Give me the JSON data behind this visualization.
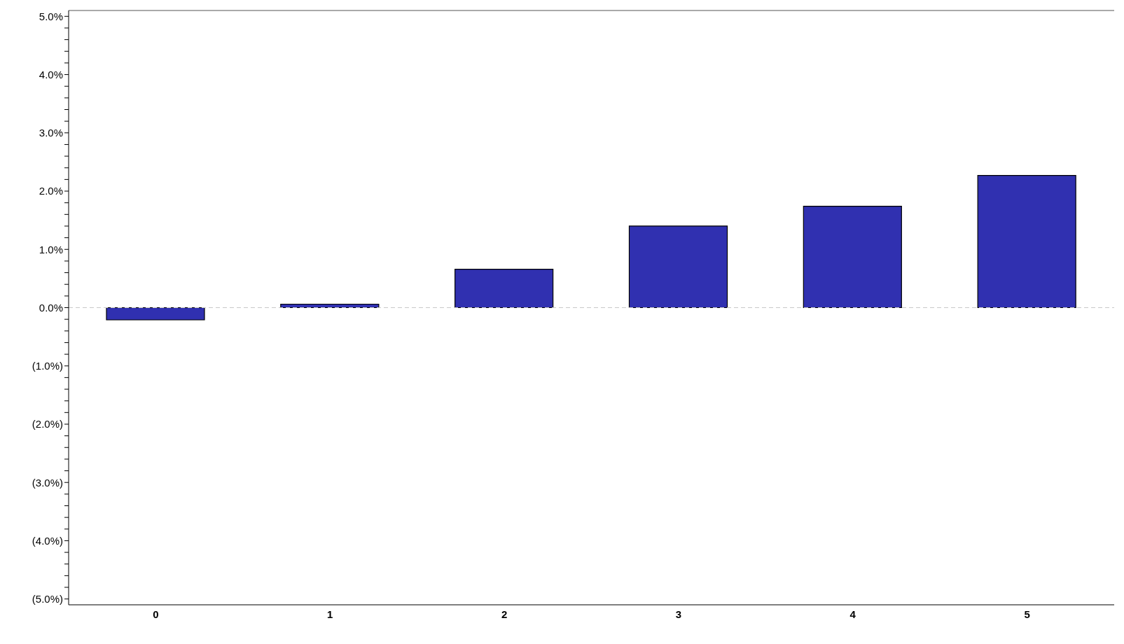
{
  "chart_data": {
    "type": "bar",
    "categories": [
      "0",
      "1",
      "2",
      "3",
      "4",
      "5"
    ],
    "values": [
      -0.21,
      0.06,
      0.66,
      1.4,
      1.74,
      2.27
    ],
    "color": "#3030b0",
    "ylim": [
      -5.1,
      5.1
    ],
    "yticks": [
      {
        "value": -5,
        "label": "(5.0%)"
      },
      {
        "value": -4.8,
        "label": null
      },
      {
        "value": -4.6,
        "label": null
      },
      {
        "value": -4.4,
        "label": null
      },
      {
        "value": -4.2,
        "label": null
      },
      {
        "value": -4,
        "label": "(4.0%)"
      },
      {
        "value": -3.8,
        "label": null
      },
      {
        "value": -3.6,
        "label": null
      },
      {
        "value": -3.4,
        "label": null
      },
      {
        "value": -3.2,
        "label": null
      },
      {
        "value": -3,
        "label": "(3.0%)"
      },
      {
        "value": -2.8,
        "label": null
      },
      {
        "value": -2.6,
        "label": null
      },
      {
        "value": -2.4,
        "label": null
      },
      {
        "value": -2.2,
        "label": null
      },
      {
        "value": -2,
        "label": "(2.0%)"
      },
      {
        "value": -1.8,
        "label": null
      },
      {
        "value": -1.6,
        "label": null
      },
      {
        "value": -1.4,
        "label": null
      },
      {
        "value": -1.2,
        "label": null
      },
      {
        "value": -1,
        "label": "(1.0%)"
      },
      {
        "value": -0.8,
        "label": null
      },
      {
        "value": -0.6,
        "label": null
      },
      {
        "value": -0.4,
        "label": null
      },
      {
        "value": -0.2,
        "label": null
      },
      {
        "value": 0,
        "label": "0.0%"
      },
      {
        "value": 0.2,
        "label": null
      },
      {
        "value": 0.4,
        "label": null
      },
      {
        "value": 0.6,
        "label": null
      },
      {
        "value": 0.8,
        "label": null
      },
      {
        "value": 1,
        "label": "1.0%"
      },
      {
        "value": 1.2,
        "label": null
      },
      {
        "value": 1.4,
        "label": null
      },
      {
        "value": 1.6,
        "label": null
      },
      {
        "value": 1.8,
        "label": null
      },
      {
        "value": 2,
        "label": "2.0%"
      },
      {
        "value": 2.2,
        "label": null
      },
      {
        "value": 2.4,
        "label": null
      },
      {
        "value": 2.6,
        "label": null
      },
      {
        "value": 2.8,
        "label": null
      },
      {
        "value": 3,
        "label": "3.0%"
      },
      {
        "value": 3.2,
        "label": null
      },
      {
        "value": 3.4,
        "label": null
      },
      {
        "value": 3.6,
        "label": null
      },
      {
        "value": 3.8,
        "label": null
      },
      {
        "value": 4,
        "label": "4.0%"
      },
      {
        "value": 4.2,
        "label": null
      },
      {
        "value": 4.4,
        "label": null
      },
      {
        "value": 4.6,
        "label": null
      },
      {
        "value": 4.8,
        "label": null
      },
      {
        "value": 5,
        "label": "5.0%"
      }
    ],
    "ref_lines": [
      {
        "axis": "y",
        "value": 0,
        "color": "#c8c8c8",
        "line_style": "dashed"
      }
    ],
    "grid": false,
    "legend": false
  }
}
